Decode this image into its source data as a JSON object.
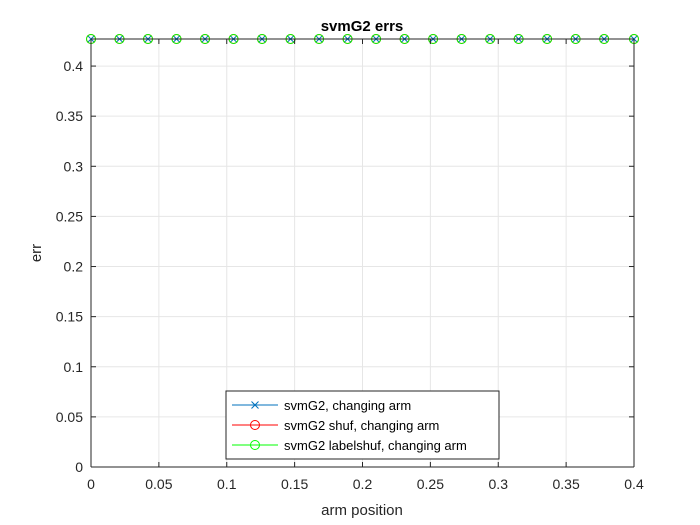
{
  "chart_data": {
    "type": "line",
    "title": "svmG2 errs",
    "xlabel": "arm position",
    "ylabel": "err",
    "xlim": [
      0,
      0.4
    ],
    "ylim": [
      0,
      0.427
    ],
    "xticks": [
      0,
      0.05,
      0.1,
      0.15,
      0.2,
      0.25,
      0.3,
      0.35,
      0.4
    ],
    "xtick_labels": [
      "0",
      "0.05",
      "0.1",
      "0.15",
      "0.2",
      "0.25",
      "0.3",
      "0.35",
      "0.4"
    ],
    "yticks": [
      0,
      0.05,
      0.1,
      0.15,
      0.2,
      0.25,
      0.3,
      0.35,
      0.4
    ],
    "ytick_labels": [
      "0",
      "0.05",
      "0.1",
      "0.15",
      "0.2",
      "0.25",
      "0.3",
      "0.35",
      "0.4"
    ],
    "grid": true,
    "legend_position": "bottom-center",
    "x": [
      0,
      0.021,
      0.042,
      0.063,
      0.084,
      0.105,
      0.126,
      0.147,
      0.168,
      0.189,
      0.21,
      0.231,
      0.252,
      0.273,
      0.294,
      0.315,
      0.336,
      0.357,
      0.378,
      0.4
    ],
    "series": [
      {
        "name": "svmG2, changing arm",
        "color": "#0072BD",
        "marker": "x",
        "values": [
          0.427,
          0.427,
          0.427,
          0.427,
          0.427,
          0.427,
          0.427,
          0.427,
          0.427,
          0.427,
          0.427,
          0.427,
          0.427,
          0.427,
          0.427,
          0.427,
          0.427,
          0.427,
          0.427,
          0.427
        ]
      },
      {
        "name": "svmG2 shuf, changing arm",
        "color": "#FF0000",
        "marker": "o",
        "values": [
          0.427,
          0.427,
          0.427,
          0.427,
          0.427,
          0.427,
          0.427,
          0.427,
          0.427,
          0.427,
          0.427,
          0.427,
          0.427,
          0.427,
          0.427,
          0.427,
          0.427,
          0.427,
          0.427,
          0.427
        ]
      },
      {
        "name": "svmG2 labelshuf, changing arm",
        "color": "#00FF00",
        "marker": "o",
        "values": [
          0.427,
          0.427,
          0.427,
          0.427,
          0.427,
          0.427,
          0.427,
          0.427,
          0.427,
          0.427,
          0.427,
          0.427,
          0.427,
          0.427,
          0.427,
          0.427,
          0.427,
          0.427,
          0.427,
          0.427
        ]
      }
    ]
  }
}
